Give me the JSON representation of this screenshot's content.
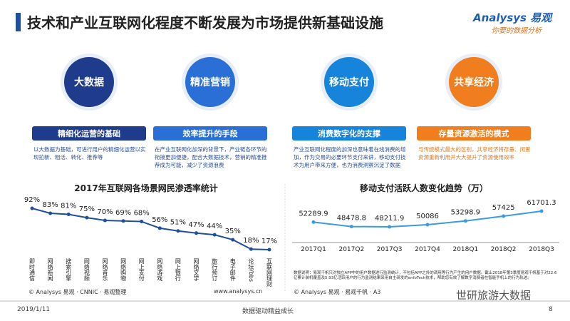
{
  "header": {
    "title": "技术和产业互联网化程度不断发展为市场提供新基础设施",
    "logo_brand": "Analysys 易观",
    "logo_tagline": "你要的数据分析"
  },
  "cards": [
    {
      "icon": "大数据",
      "banner": "精细化运营的基础",
      "text": "以大数据为基础，可进行用户的精细化运营以实现拉新、粗活、转化、推荐等",
      "color": "#1f3b8c"
    },
    {
      "icon": "精准营销",
      "banner": "效率提升的手段",
      "text": "在产业互联网化加深的背景下，产业链各环节的衔接更加便捷，配合大数据技术，营销的精准推荐成为可能，减少了资源浪费",
      "color": "#2a6fd6"
    },
    {
      "icon": "移动支付",
      "banner": "消费数字化的支撑",
      "text": "产业互联网化程度的加深也意味着在线消费的增加，作为交易的必要环节支付来讲，移动支付技术为用户带来方便，也为消费洞察沉淀了数据",
      "color": "#1784dc"
    },
    {
      "icon": "共享经济",
      "banner": "存量资源激活的模式",
      "text": "与传统模式最大的区别，共享经济将存量、闲置资源重新利用并大大提升了资源使用效率",
      "color": "#f07d1e"
    }
  ],
  "chart_data": [
    {
      "type": "line",
      "title": "2017年互联网各场景网民渗透率统计",
      "categories": [
        "即时通信",
        "网络新闻",
        "搜索引擎",
        "网络视频",
        "网络音乐",
        "网络购物",
        "网上支付",
        "网络游戏",
        "网上银行",
        "网络文学",
        "旅行预订",
        "电子邮件",
        "论坛/bbs",
        "互联网理财"
      ],
      "values": [
        92,
        83,
        81,
        75,
        70,
        69,
        68,
        56,
        51,
        47,
        44,
        35,
        18,
        17
      ],
      "value_labels": [
        "92%",
        "83%",
        "81%",
        "75%",
        "70%",
        "69%",
        "68%",
        "56%",
        "51%",
        "47%",
        "44%",
        "35%",
        "18%",
        "17%"
      ],
      "color": "#1f4e9a",
      "source": "© Analysys 易观 · CNNIC · 易观整理"
    },
    {
      "type": "line",
      "title": "移动支付活跃人数变化趋势（万）",
      "categories": [
        "2017Q1",
        "2017Q2",
        "2017Q3",
        "2017Q4",
        "2018Q1",
        "2018Q2",
        "2018Q3"
      ],
      "values": [
        52289.9,
        48478.8,
        48211.9,
        50086,
        53298.9,
        57425,
        61701.3
      ],
      "color": "#3a9be0",
      "note": "数据说明：易观千帆只对独立APP中的用户数据进行监测统计，不包括APP之外的调用等行为产生的用户数据。截止2018年第3季度易观千帆基于对22.6亿累计装机覆盖及5.93亿活跃用户的行为监测结果采用自主研发的enfoTech技术，帮助您有效了解数字消费者在智能手机上的行为轨迹。",
      "source": "© Analysys 易观 · 易观千帆 · A3"
    }
  ],
  "website": "www.analysys.cn",
  "footer": {
    "date": "2019/1/11",
    "slogan": "数据驱动精益成长",
    "page": "8",
    "watermark": "世研旅游大数据"
  }
}
